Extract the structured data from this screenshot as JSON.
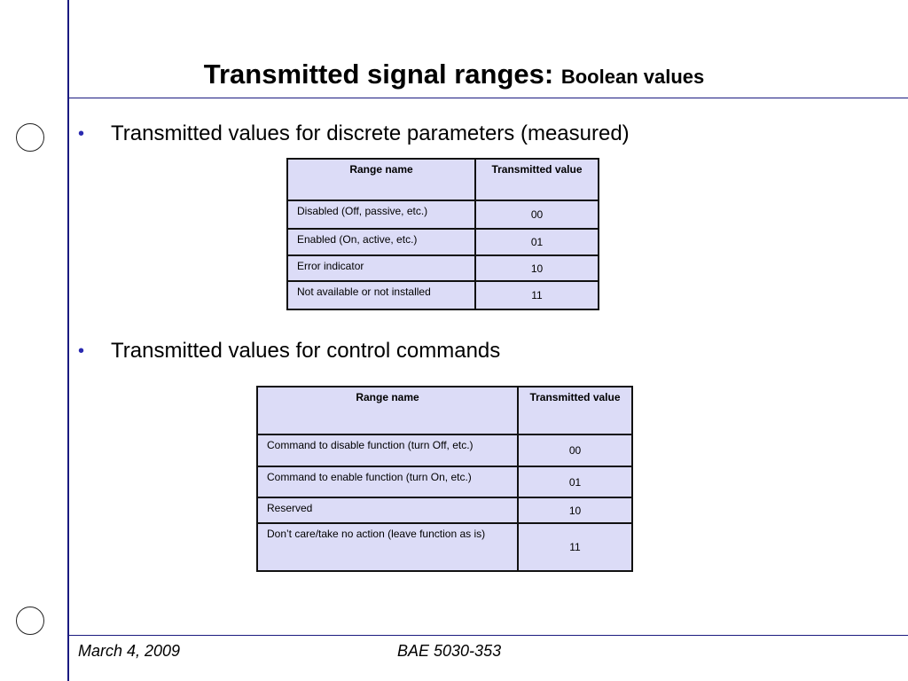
{
  "header": {
    "title": "Transmitted signal ranges:",
    "subtitle": "Boolean values"
  },
  "sections": [
    {
      "text": "Transmitted values for discrete parameters (measured)",
      "table": {
        "header": [
          "Range name",
          "Transmitted value"
        ],
        "rows": [
          [
            "Disabled (Off, passive, etc.)",
            "00"
          ],
          [
            "Enabled (On, active, etc.)",
            "01"
          ],
          [
            "Error indicator",
            "10"
          ],
          [
            "Not available or not installed",
            "11"
          ]
        ]
      }
    },
    {
      "text": "Transmitted values for control commands",
      "table": {
        "header": [
          "Range name",
          "Transmitted value"
        ],
        "rows": [
          [
            "Command to disable function (turn Off, etc.)",
            "00"
          ],
          [
            "Command to enable function (turn On, etc.)",
            "01"
          ],
          [
            "Reserved",
            "10"
          ],
          [
            "Don’t care/take no action (leave function as is)",
            "11"
          ]
        ]
      }
    }
  ],
  "footer": {
    "date": "March 4, 2009",
    "course": "BAE 5030-353"
  }
}
